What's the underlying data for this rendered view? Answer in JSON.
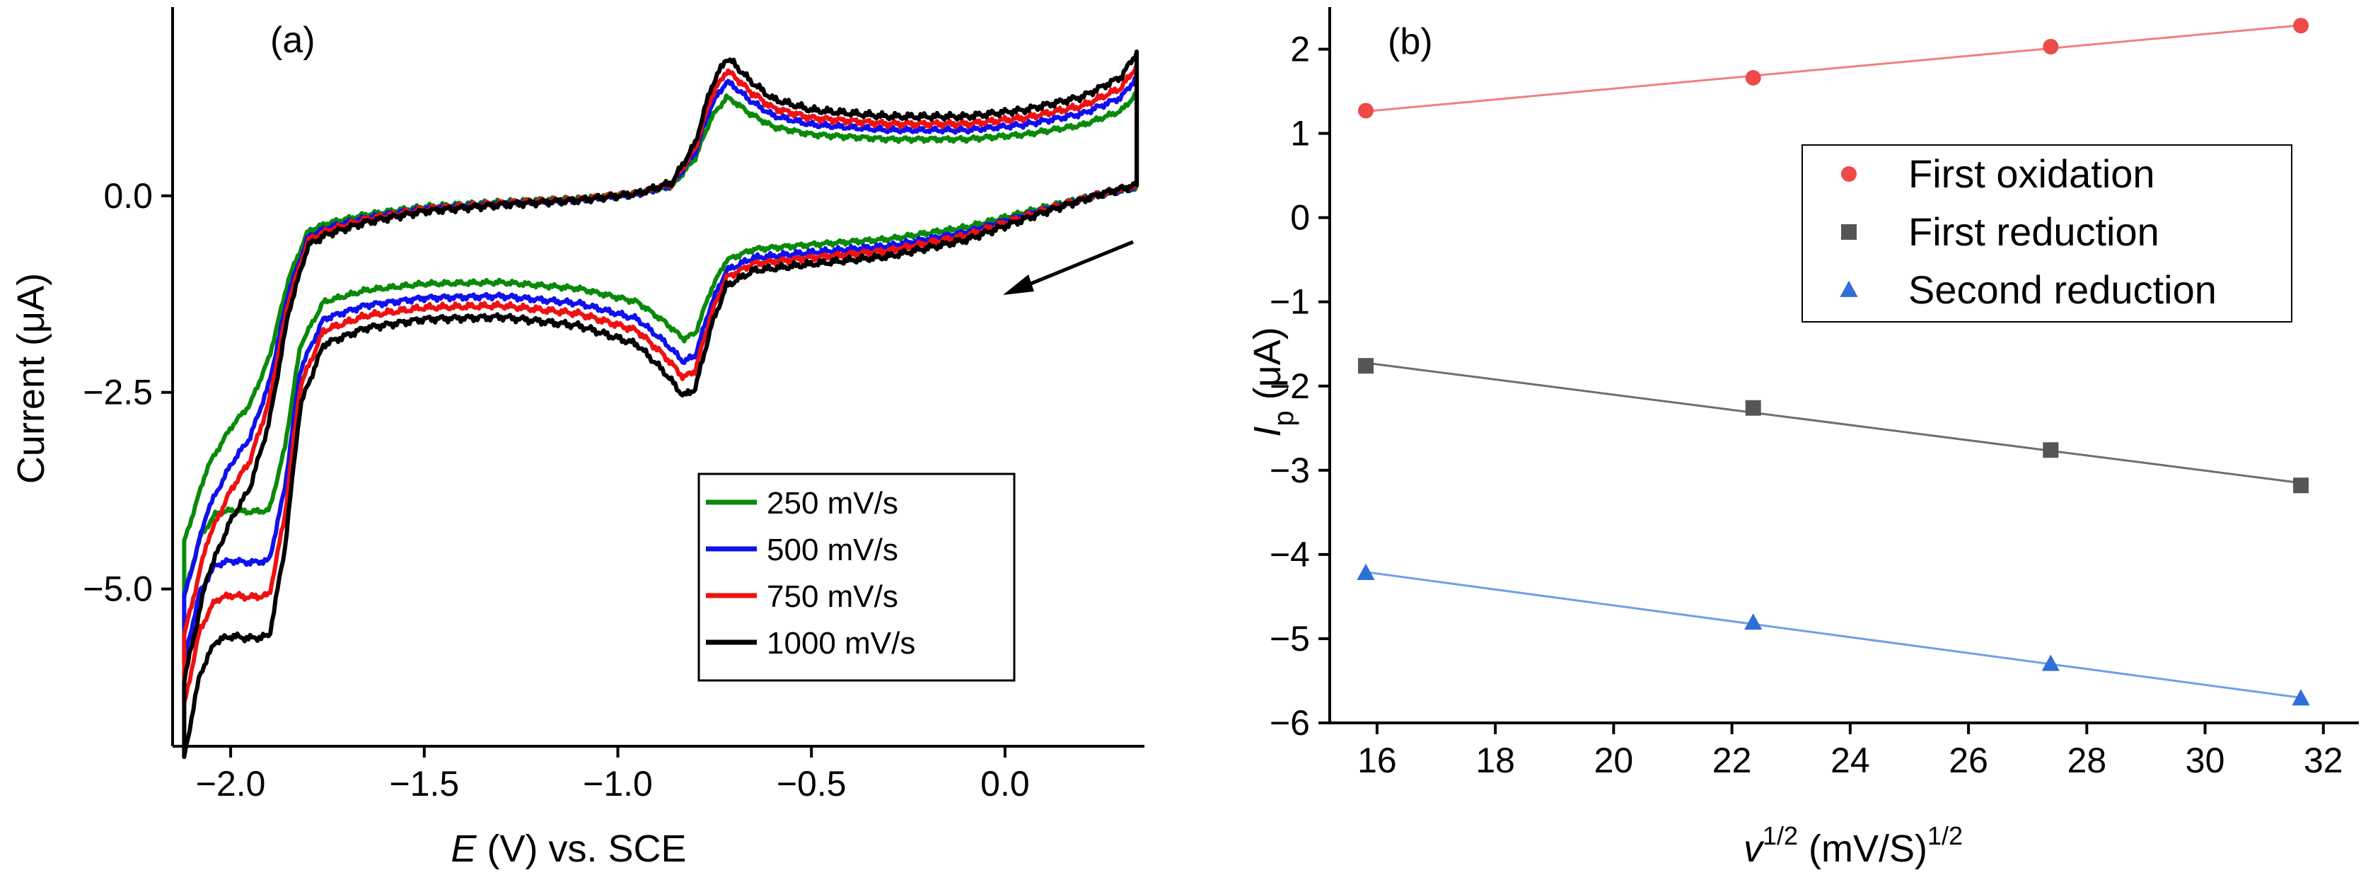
{
  "chart_data": [
    {
      "panel": "(a)",
      "type": "line",
      "title": "",
      "xlabel_italic": "E",
      "xlabel_rest": " (V) vs. SCE",
      "ylabel": "Current (μA)",
      "xlim": [
        -2.15,
        0.36
      ],
      "ylim": [
        -7.0,
        2.4
      ],
      "xticks": [
        -2.0,
        -1.5,
        -1.0,
        -0.5,
        0.0
      ],
      "xtick_labels": [
        "−2.0",
        "−1.5",
        "−1.0",
        "−0.5",
        "0.0"
      ],
      "yticks": [
        0.0,
        -2.5,
        -5.0
      ],
      "ytick_labels": [
        "0.0",
        "−2.5",
        "−5.0"
      ],
      "legend_location": "bottom-right",
      "annotation": "arrow indicating scan direction (cathodic sweep)",
      "series": [
        {
          "name": "250 mV/s",
          "color": "#0a8a0a",
          "scale": 1.0
        },
        {
          "name": "500 mV/s",
          "color": "#1010ee",
          "scale": 1.16
        },
        {
          "name": "750 mV/s",
          "color": "#ee1111",
          "scale": 1.27
        },
        {
          "name": "1000 mV/s",
          "color": "#000000",
          "scale": 1.4
        }
      ],
      "reference_curve": {
        "description": "approximate 250 mV/s cyclic voltammogram, E (V) vs current (μA)",
        "forward": [
          [
            -2.12,
            -5.1
          ],
          [
            -2.08,
            -4.35
          ],
          [
            -2.04,
            -4.05
          ],
          [
            -2.0,
            -4.0
          ],
          [
            -1.95,
            -4.02
          ],
          [
            -1.9,
            -4.0
          ],
          [
            -1.86,
            -3.2
          ],
          [
            -1.82,
            -1.9
          ],
          [
            -1.76,
            -1.35
          ],
          [
            -1.65,
            -1.2
          ],
          [
            -1.5,
            -1.12
          ],
          [
            -1.3,
            -1.1
          ],
          [
            -1.1,
            -1.18
          ],
          [
            -0.95,
            -1.35
          ],
          [
            -0.88,
            -1.6
          ],
          [
            -0.83,
            -1.82
          ],
          [
            -0.8,
            -1.75
          ],
          [
            -0.76,
            -1.2
          ],
          [
            -0.72,
            -0.82
          ],
          [
            -0.65,
            -0.68
          ],
          [
            -0.5,
            -0.62
          ],
          [
            -0.3,
            -0.55
          ],
          [
            -0.1,
            -0.4
          ],
          [
            0.1,
            -0.15
          ],
          [
            0.25,
            0.02
          ],
          [
            0.34,
            0.1
          ]
        ],
        "reverse": [
          [
            0.34,
            1.3
          ],
          [
            0.3,
            1.08
          ],
          [
            0.2,
            0.9
          ],
          [
            0.05,
            0.78
          ],
          [
            -0.1,
            0.72
          ],
          [
            -0.3,
            0.72
          ],
          [
            -0.5,
            0.78
          ],
          [
            -0.6,
            0.88
          ],
          [
            -0.66,
            1.05
          ],
          [
            -0.7,
            1.2
          ],
          [
            -0.72,
            1.25
          ],
          [
            -0.76,
            0.98
          ],
          [
            -0.8,
            0.48
          ],
          [
            -0.86,
            0.12
          ],
          [
            -0.95,
            0.02
          ],
          [
            -1.1,
            -0.04
          ],
          [
            -1.3,
            -0.08
          ],
          [
            -1.5,
            -0.14
          ],
          [
            -1.65,
            -0.24
          ],
          [
            -1.75,
            -0.35
          ],
          [
            -1.8,
            -0.45
          ],
          [
            -1.85,
            -1.05
          ],
          [
            -1.9,
            -2.05
          ],
          [
            -1.95,
            -2.65
          ],
          [
            -2.0,
            -2.95
          ],
          [
            -2.06,
            -3.45
          ],
          [
            -2.12,
            -4.4
          ]
        ]
      }
    },
    {
      "panel": "(b)",
      "type": "scatter",
      "title": "",
      "xlabel_base": "v",
      "xlabel_sup1": "1/2",
      "xlabel_mid": " (mV/S)",
      "xlabel_sup2": "1/2",
      "ylabel_base": "I",
      "ylabel_sub": "p",
      "ylabel_rest": " (μA)",
      "xlim": [
        15.2,
        32.6
      ],
      "ylim": [
        -6,
        2.5
      ],
      "xticks": [
        16,
        18,
        20,
        22,
        24,
        26,
        28,
        30,
        32
      ],
      "xtick_labels": [
        "16",
        "18",
        "20",
        "22",
        "24",
        "26",
        "28",
        "30",
        "32"
      ],
      "yticks": [
        2,
        1,
        0,
        -1,
        -2,
        -3,
        -4,
        -5,
        -6
      ],
      "ytick_labels": [
        "2",
        "1",
        "0",
        "−1",
        "−2",
        "−3",
        "−4",
        "−5",
        "−6"
      ],
      "legend_location": "upper-right",
      "x": [
        15.81,
        22.36,
        27.39,
        31.62
      ],
      "series": [
        {
          "name": "First oxidation",
          "marker": "circle",
          "color": "#ee4a4a",
          "line_color": "#f08080",
          "values": [
            1.27,
            1.66,
            2.03,
            2.28
          ]
        },
        {
          "name": "First reduction",
          "marker": "square",
          "color": "#555555",
          "line_color": "#6e6e6e",
          "values": [
            -1.76,
            -2.26,
            -2.76,
            -3.18
          ]
        },
        {
          "name": "Second reduction",
          "marker": "triangle",
          "color": "#2f6fd6",
          "line_color": "#6fa0e8",
          "values": [
            -4.22,
            -4.81,
            -5.3,
            -5.71
          ]
        }
      ]
    }
  ]
}
